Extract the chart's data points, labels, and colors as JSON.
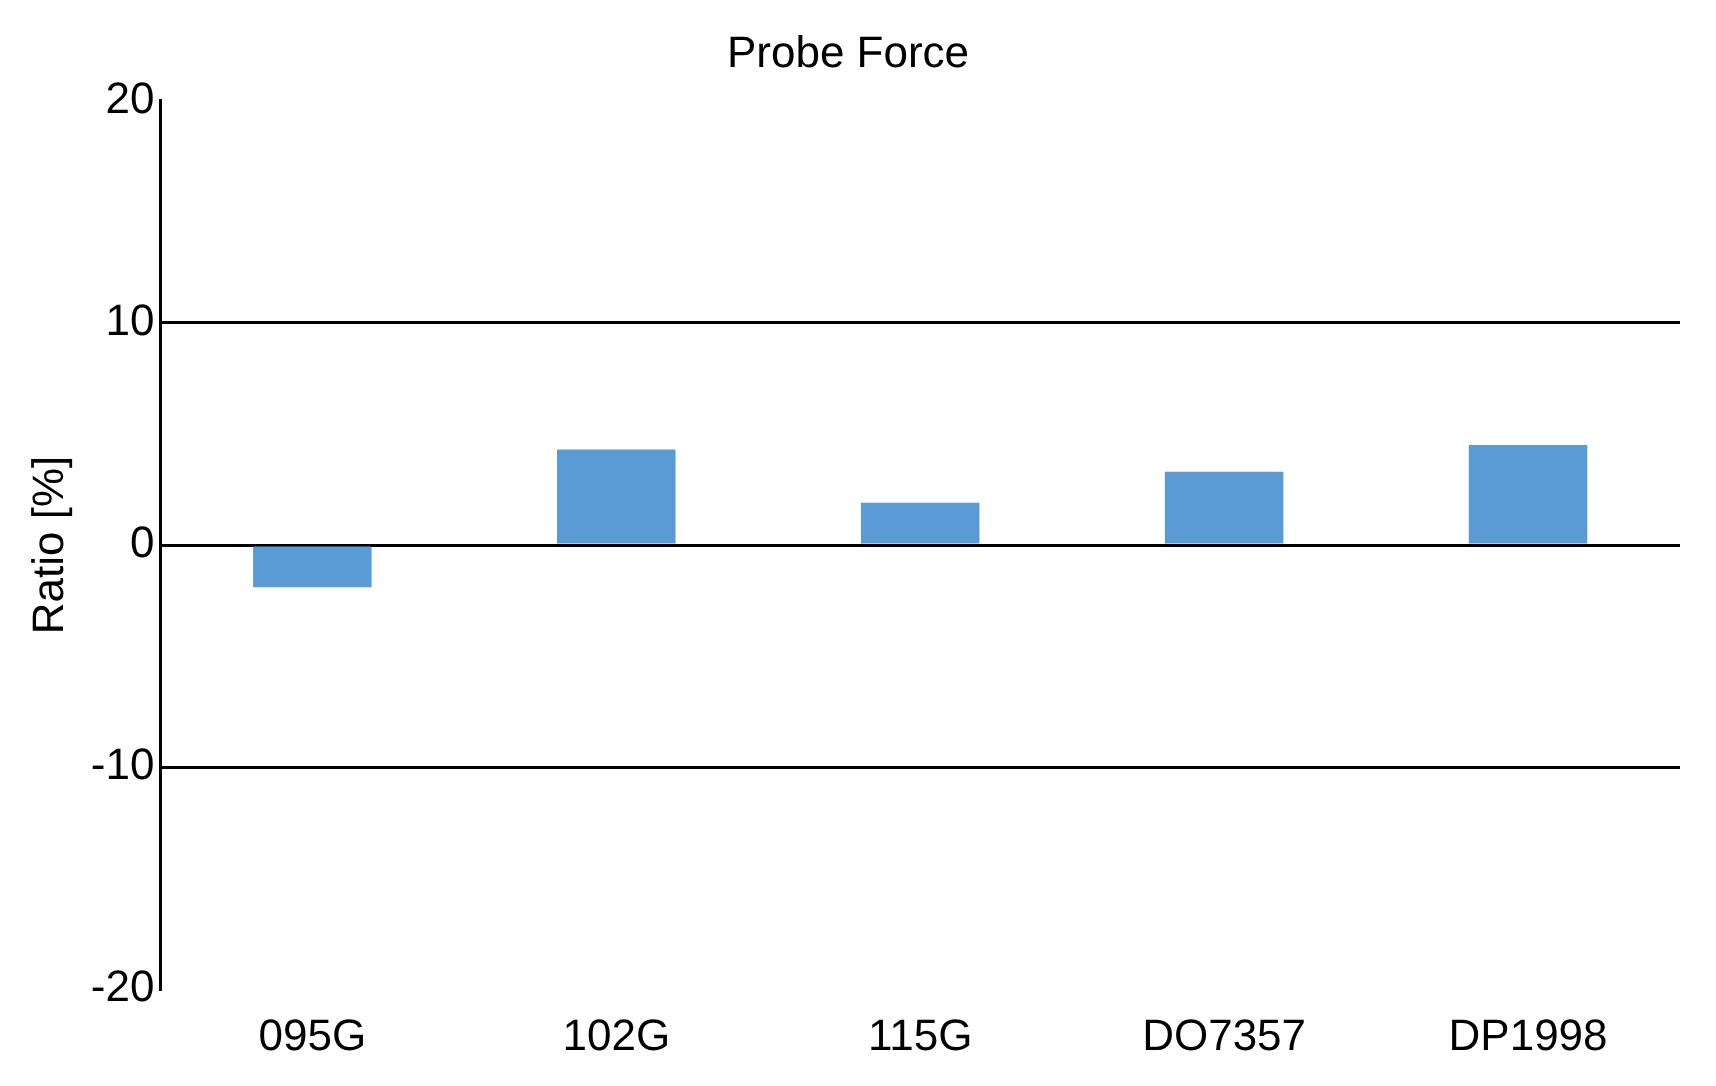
{
  "chart_data": {
    "type": "bar",
    "title": "Probe Force",
    "ylabel": "Ratio [%]",
    "categories": [
      "095G",
      "102G",
      "115G",
      "DO7357",
      "DP1998"
    ],
    "values": [
      -1.9,
      4.3,
      1.9,
      3.3,
      4.5
    ],
    "color": "#5b9bd5",
    "ylim": [
      -20,
      20
    ],
    "yticks": [
      -20,
      -10,
      0,
      10,
      20
    ],
    "grid": "y",
    "legend": false
  }
}
